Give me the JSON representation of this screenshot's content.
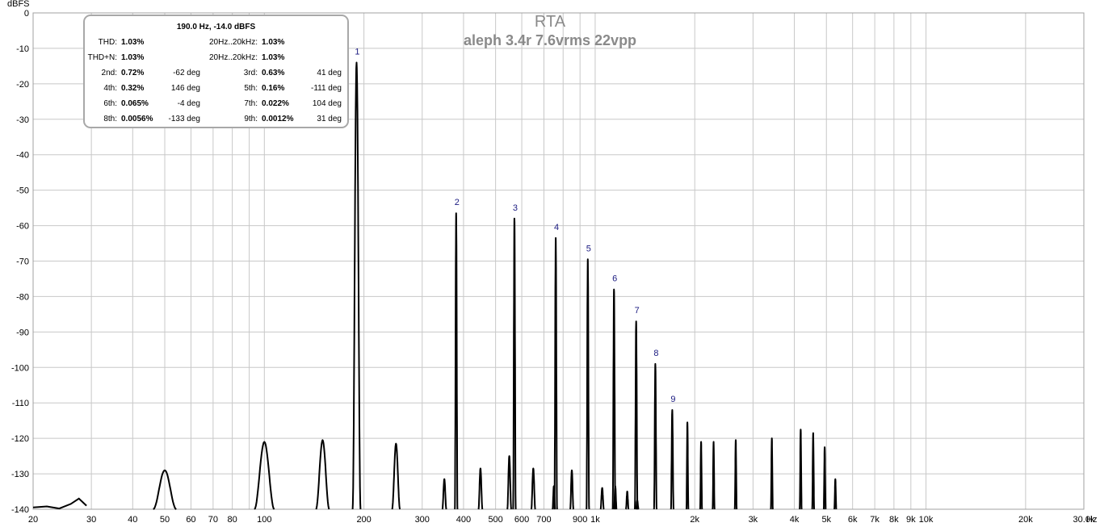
{
  "chart_data": {
    "type": "line",
    "title": "RTA",
    "subtitle": "aleph 3.4r 7.6vrms 22vpp",
    "ylabel": "dBFS",
    "xunit": "Hz",
    "xscale": "log",
    "xlim": [
      20,
      30000
    ],
    "ylim": [
      -140,
      0
    ],
    "grid": true,
    "x_tick_labels": [
      {
        "v": 20,
        "t": "20"
      },
      {
        "v": 30,
        "t": "30"
      },
      {
        "v": 40,
        "t": "40"
      },
      {
        "v": 50,
        "t": "50"
      },
      {
        "v": 60,
        "t": "60"
      },
      {
        "v": 70,
        "t": "70"
      },
      {
        "v": 80,
        "t": "80"
      },
      {
        "v": 100,
        "t": "100"
      },
      {
        "v": 200,
        "t": "200"
      },
      {
        "v": 300,
        "t": "300"
      },
      {
        "v": 400,
        "t": "400"
      },
      {
        "v": 500,
        "t": "500"
      },
      {
        "v": 600,
        "t": "600"
      },
      {
        "v": 700,
        "t": "700"
      },
      {
        "v": 900,
        "t": "900"
      },
      {
        "v": 1000,
        "t": "1k"
      },
      {
        "v": 2000,
        "t": "2k"
      },
      {
        "v": 3000,
        "t": "3k"
      },
      {
        "v": 4000,
        "t": "4k"
      },
      {
        "v": 5000,
        "t": "5k"
      },
      {
        "v": 6000,
        "t": "6k"
      },
      {
        "v": 7000,
        "t": "7k"
      },
      {
        "v": 8000,
        "t": "8k"
      },
      {
        "v": 9000,
        "t": "9k"
      },
      {
        "v": 10000,
        "t": "10k"
      },
      {
        "v": 20000,
        "t": "20k"
      },
      {
        "v": 30000,
        "t": "30.0k"
      }
    ],
    "y_tick_labels": [
      {
        "v": 0,
        "t": "0"
      },
      {
        "v": -10,
        "t": "-10"
      },
      {
        "v": -20,
        "t": "-20"
      },
      {
        "v": -30,
        "t": "-30"
      },
      {
        "v": -40,
        "t": "-40"
      },
      {
        "v": -50,
        "t": "-50"
      },
      {
        "v": -60,
        "t": "-60"
      },
      {
        "v": -70,
        "t": "-70"
      },
      {
        "v": -80,
        "t": "-80"
      },
      {
        "v": -90,
        "t": "-90"
      },
      {
        "v": -100,
        "t": "-100"
      },
      {
        "v": -110,
        "t": "-110"
      },
      {
        "v": -120,
        "t": "-120"
      },
      {
        "v": -130,
        "t": "-130"
      },
      {
        "v": -140,
        "t": "-140"
      }
    ],
    "harmonics": [
      {
        "label": "1",
        "x": 190,
        "y": -14.0
      },
      {
        "label": "2",
        "x": 380,
        "y": -56.5
      },
      {
        "label": "3",
        "x": 570,
        "y": -58.0
      },
      {
        "label": "4",
        "x": 760,
        "y": -63.5
      },
      {
        "label": "5",
        "x": 950,
        "y": -69.5
      },
      {
        "label": "6",
        "x": 1140,
        "y": -78.0
      },
      {
        "label": "7",
        "x": 1330,
        "y": -87.0
      },
      {
        "label": "8",
        "x": 1520,
        "y": -99.0
      },
      {
        "label": "9",
        "x": 1710,
        "y": -112.0
      }
    ],
    "other_peaks": [
      {
        "x": 50,
        "y": -129,
        "w": 0.035
      },
      {
        "x": 100,
        "y": -121,
        "w": 0.03
      },
      {
        "x": 150,
        "y": -120.5,
        "w": 0.02
      },
      {
        "x": 250,
        "y": -121.5,
        "w": 0.012
      },
      {
        "x": 350,
        "y": -131.5,
        "w": 0.006
      },
      {
        "x": 450,
        "y": -128.5,
        "w": 0.006
      },
      {
        "x": 550,
        "y": -125,
        "w": 0.006
      },
      {
        "x": 650,
        "y": -128.5,
        "w": 0.006
      },
      {
        "x": 750,
        "y": -133.5,
        "w": 0.004
      },
      {
        "x": 850,
        "y": -129,
        "w": 0.005
      },
      {
        "x": 1050,
        "y": -134,
        "w": 0.005
      },
      {
        "x": 1150,
        "y": -133.5,
        "w": 0.004
      },
      {
        "x": 1250,
        "y": -135,
        "w": 0.004
      },
      {
        "x": 1340,
        "y": -137.5,
        "w": 0.004
      },
      {
        "x": 1900,
        "y": -115.5,
        "w": 0.003
      },
      {
        "x": 2090,
        "y": -121,
        "w": 0.003
      },
      {
        "x": 2280,
        "y": -121,
        "w": 0.003
      },
      {
        "x": 2660,
        "y": -120.5,
        "w": 0.003
      },
      {
        "x": 3420,
        "y": -120,
        "w": 0.003
      },
      {
        "x": 4180,
        "y": -117.5,
        "w": 0.003
      },
      {
        "x": 4560,
        "y": -118.5,
        "w": 0.003
      },
      {
        "x": 4940,
        "y": -122.5,
        "w": 0.003
      },
      {
        "x": 5320,
        "y": -131.5,
        "w": 0.003
      }
    ],
    "noise_floor": [
      {
        "x": 20,
        "y": -139.5
      },
      {
        "x": 22,
        "y": -139.2
      },
      {
        "x": 24,
        "y": -139.8
      },
      {
        "x": 26,
        "y": -138.5
      },
      {
        "x": 27.5,
        "y": -137.0
      },
      {
        "x": 29,
        "y": -139.0
      }
    ]
  },
  "infobox": {
    "header": "190.0 Hz, -14.0 dBFS",
    "rows": [
      {
        "l1": "THD:",
        "v1": "1.03%",
        "d1": "",
        "l2": "20Hz..20kHz:",
        "v2": "1.03%",
        "d2": ""
      },
      {
        "l1": "THD+N:",
        "v1": "1.03%",
        "d1": "",
        "l2": "20Hz..20kHz:",
        "v2": "1.03%",
        "d2": ""
      },
      {
        "l1": "2nd:",
        "v1": "0.72%",
        "d1": "-62 deg",
        "l2": "3rd:",
        "v2": "0.63%",
        "d2": "41 deg"
      },
      {
        "l1": "4th:",
        "v1": "0.32%",
        "d1": "146 deg",
        "l2": "5th:",
        "v2": "0.16%",
        "d2": "-111 deg"
      },
      {
        "l1": "6th:",
        "v1": "0.065%",
        "d1": "-4 deg",
        "l2": "7th:",
        "v2": "0.022%",
        "d2": "104 deg"
      },
      {
        "l1": "8th:",
        "v1": "0.0056%",
        "d1": "-133 deg",
        "l2": "9th:",
        "v2": "0.0012%",
        "d2": "31 deg"
      }
    ]
  },
  "colors": {
    "trace": "#000000",
    "grid": "#c8c8c8",
    "title": "#8a8a8a",
    "harmonic_label": "#1a1a80"
  }
}
